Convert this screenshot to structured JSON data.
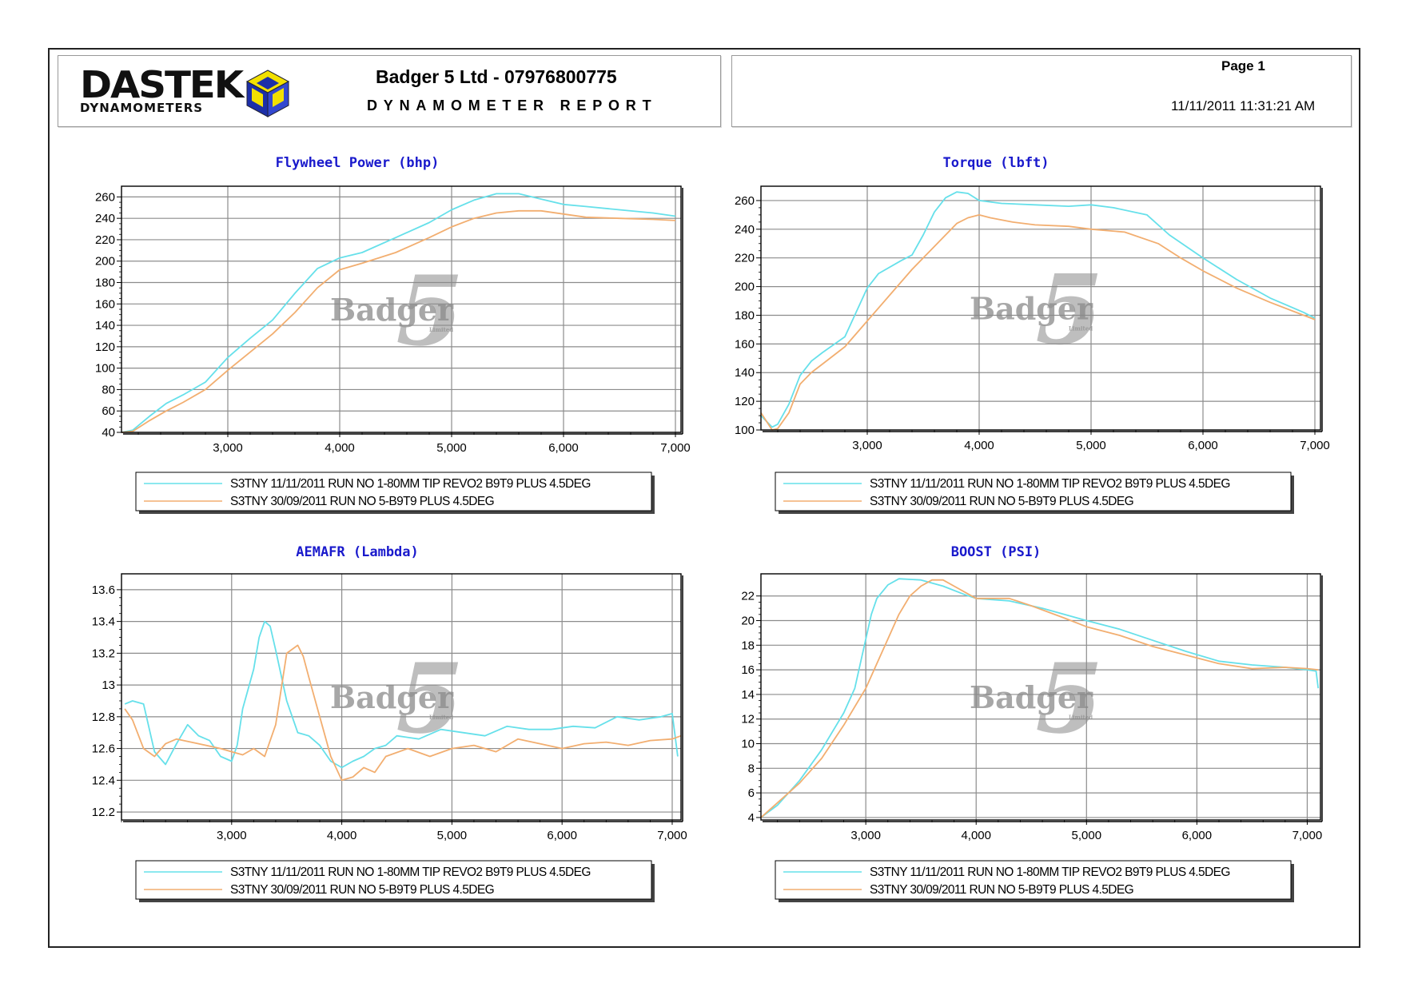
{
  "header": {
    "logo_main": "DASTEK",
    "logo_sub": "DYNAMOMETERS",
    "company": "Badger 5 Ltd - 07976800775",
    "report_title": "DYNAMOMETER REPORT",
    "page_label": "Page 1",
    "datetime": "11/11/2011 11:31:21 AM"
  },
  "colors": {
    "run1": "#66e0ea",
    "run2": "#f2ae70",
    "title": "#1a1acc"
  },
  "watermark": {
    "text": "Badger",
    "sub": "Limited",
    "numeral": "5"
  },
  "legend": [
    {
      "label": "S3TNY 11/11/2011 RUN NO 1-80MM TIP REVO2 B9T9 PLUS 4.5DEG"
    },
    {
      "label": "S3TNY 30/09/2011 RUN NO 5-B9T9 PLUS 4.5DEG"
    }
  ],
  "chart_data": [
    {
      "type": "line",
      "title": "Flywheel Power (bhp)",
      "xlim": [
        2050,
        7050
      ],
      "ylim": [
        40,
        270
      ],
      "xticks": [
        3000,
        4000,
        5000,
        6000,
        7000
      ],
      "xtick_labels": [
        "3,000",
        "4,000",
        "5,000",
        "6,000",
        "7,000"
      ],
      "yticks": [
        40,
        60,
        80,
        100,
        120,
        140,
        160,
        180,
        200,
        220,
        240,
        260
      ],
      "ytick_labels": [
        "40",
        "60",
        "80",
        "100",
        "120",
        "140",
        "160",
        "180",
        "200",
        "220",
        "240",
        "260"
      ],
      "series": [
        {
          "name": "S3TNY 11/11/2011 RUN NO 1-80MM TIP REVO2 B9T9 PLUS 4.5DEG",
          "x": [
            2050,
            2150,
            2300,
            2450,
            2600,
            2800,
            3000,
            3200,
            3400,
            3600,
            3800,
            4000,
            4200,
            4500,
            4800,
            5000,
            5200,
            5400,
            5600,
            5800,
            6000,
            6200,
            6500,
            6800,
            7000
          ],
          "y": [
            40,
            42,
            55,
            67,
            75,
            87,
            110,
            128,
            145,
            170,
            193,
            203,
            208,
            222,
            236,
            248,
            257,
            263,
            263,
            258,
            253,
            251,
            248,
            245,
            242
          ]
        },
        {
          "name": "S3TNY 30/09/2011 RUN NO 5-B9T9 PLUS 4.5DEG",
          "x": [
            2050,
            2150,
            2300,
            2450,
            2600,
            2800,
            3000,
            3200,
            3400,
            3600,
            3800,
            4000,
            4200,
            4500,
            4800,
            5000,
            5200,
            5400,
            5600,
            5800,
            6000,
            6200,
            6500,
            6800,
            7000
          ],
          "y": [
            40,
            41,
            51,
            60,
            68,
            80,
            98,
            115,
            132,
            152,
            175,
            192,
            198,
            208,
            222,
            232,
            240,
            245,
            247,
            247,
            244,
            241,
            240,
            239,
            238
          ]
        }
      ]
    },
    {
      "type": "line",
      "title": "Torque (lbft)",
      "xlim": [
        2050,
        7050
      ],
      "ylim": [
        100,
        270
      ],
      "xticks": [
        3000,
        4000,
        5000,
        6000,
        7000
      ],
      "xtick_labels": [
        "3,000",
        "4,000",
        "5,000",
        "6,000",
        "7,000"
      ],
      "yticks": [
        100,
        120,
        140,
        160,
        180,
        200,
        220,
        240,
        260
      ],
      "ytick_labels": [
        "100",
        "120",
        "140",
        "160",
        "180",
        "200",
        "220",
        "240",
        "260"
      ],
      "series": [
        {
          "name": "S3TNY 11/11/2011 RUN NO 1-80MM TIP REVO2 B9T9 PLUS 4.5DEG",
          "x": [
            2050,
            2150,
            2200,
            2300,
            2400,
            2500,
            2600,
            2800,
            3000,
            3100,
            3300,
            3400,
            3500,
            3600,
            3700,
            3800,
            3900,
            4000,
            4200,
            4500,
            4800,
            5000,
            5200,
            5500,
            5700,
            6000,
            6300,
            6600,
            6900,
            7000
          ],
          "y": [
            110,
            102,
            104,
            118,
            138,
            148,
            154,
            165,
            199,
            209,
            218,
            222,
            236,
            252,
            262,
            266,
            265,
            260,
            258,
            257,
            256,
            257,
            255,
            250,
            236,
            220,
            205,
            192,
            182,
            178
          ]
        },
        {
          "name": "S3TNY 30/09/2011 RUN NO 5-B9T9 PLUS 4.5DEG",
          "x": [
            2050,
            2150,
            2200,
            2300,
            2400,
            2500,
            2600,
            2800,
            3000,
            3200,
            3400,
            3600,
            3800,
            3900,
            4000,
            4100,
            4300,
            4500,
            4800,
            5000,
            5300,
            5600,
            5800,
            6000,
            6300,
            6600,
            6900,
            7000
          ],
          "y": [
            112,
            100,
            101,
            112,
            132,
            140,
            146,
            158,
            176,
            194,
            212,
            228,
            244,
            248,
            250,
            248,
            245,
            243,
            242,
            240,
            238,
            230,
            220,
            211,
            199,
            189,
            180,
            177
          ]
        }
      ]
    },
    {
      "type": "line",
      "title": "AEMAFR (Lambda)",
      "xlim": [
        2000,
        7080
      ],
      "ylim": [
        12.15,
        13.7
      ],
      "xticks": [
        3000,
        4000,
        5000,
        6000,
        7000
      ],
      "xtick_labels": [
        "3,000",
        "4,000",
        "5,000",
        "6,000",
        "7,000"
      ],
      "yticks": [
        12.2,
        12.4,
        12.6,
        12.8,
        13.0,
        13.2,
        13.4,
        13.6
      ],
      "ytick_labels": [
        "12.2",
        "12.4",
        "12.6",
        "12.8",
        "13",
        "13.2",
        "13.4",
        "13.6"
      ],
      "series": [
        {
          "name": "S3TNY 11/11/2011 RUN NO 1-80MM TIP REVO2 B9T9 PLUS 4.5DEG",
          "x": [
            2030,
            2100,
            2200,
            2300,
            2400,
            2500,
            2600,
            2700,
            2800,
            2900,
            3000,
            3050,
            3100,
            3200,
            3250,
            3300,
            3350,
            3400,
            3500,
            3600,
            3700,
            3800,
            3900,
            4000,
            4100,
            4200,
            4300,
            4400,
            4500,
            4700,
            4900,
            5100,
            5300,
            5500,
            5700,
            5900,
            6100,
            6300,
            6500,
            6700,
            6900,
            7000,
            7050
          ],
          "y": [
            12.88,
            12.9,
            12.88,
            12.58,
            12.5,
            12.63,
            12.75,
            12.68,
            12.65,
            12.55,
            12.52,
            12.62,
            12.85,
            13.1,
            13.3,
            13.4,
            13.37,
            13.22,
            12.9,
            12.7,
            12.68,
            12.62,
            12.52,
            12.48,
            12.52,
            12.55,
            12.6,
            12.62,
            12.68,
            12.66,
            12.72,
            12.7,
            12.68,
            12.74,
            12.72,
            12.72,
            12.74,
            12.73,
            12.8,
            12.78,
            12.8,
            12.82,
            12.55
          ]
        },
        {
          "name": "S3TNY 30/09/2011 RUN NO 5-B9T9 PLUS 4.5DEG",
          "x": [
            2030,
            2100,
            2200,
            2300,
            2400,
            2500,
            2700,
            2900,
            3000,
            3100,
            3200,
            3300,
            3400,
            3500,
            3600,
            3650,
            3700,
            3800,
            3900,
            4000,
            4100,
            4200,
            4300,
            4400,
            4600,
            4800,
            5000,
            5200,
            5400,
            5600,
            5800,
            6000,
            6200,
            6400,
            6600,
            6800,
            7000,
            7080
          ],
          "y": [
            12.85,
            12.78,
            12.6,
            12.55,
            12.63,
            12.66,
            12.63,
            12.6,
            12.58,
            12.56,
            12.6,
            12.55,
            12.75,
            13.2,
            13.25,
            13.18,
            13.05,
            12.8,
            12.55,
            12.4,
            12.42,
            12.48,
            12.45,
            12.55,
            12.6,
            12.55,
            12.6,
            12.62,
            12.58,
            12.66,
            12.63,
            12.6,
            12.63,
            12.64,
            12.62,
            12.65,
            12.66,
            12.68
          ]
        }
      ]
    },
    {
      "type": "line",
      "title": "BOOST (PSI)",
      "xlim": [
        2050,
        7120
      ],
      "ylim": [
        3.8,
        23.8
      ],
      "xticks": [
        3000,
        4000,
        5000,
        6000,
        7000
      ],
      "xtick_labels": [
        "3,000",
        "4,000",
        "5,000",
        "6,000",
        "7,000"
      ],
      "yticks": [
        4,
        6,
        8,
        10,
        12,
        14,
        16,
        18,
        20,
        22
      ],
      "ytick_labels": [
        "4",
        "6",
        "8",
        "10",
        "12",
        "14",
        "16",
        "18",
        "20",
        "22"
      ],
      "series": [
        {
          "name": "S3TNY 11/11/2011 RUN NO 1-80MM TIP REVO2 B9T9 PLUS 4.5DEG",
          "x": [
            2050,
            2200,
            2400,
            2600,
            2800,
            2900,
            3000,
            3050,
            3100,
            3200,
            3300,
            3500,
            3700,
            3900,
            4000,
            4300,
            4600,
            5000,
            5300,
            5600,
            5900,
            6200,
            6500,
            6800,
            7000,
            7080,
            7100
          ],
          "y": [
            4,
            5,
            7,
            9.5,
            12.5,
            14.5,
            18.5,
            20.5,
            21.8,
            22.9,
            23.4,
            23.3,
            22.8,
            22.1,
            21.8,
            21.6,
            21,
            20,
            19.3,
            18.4,
            17.5,
            16.7,
            16.4,
            16.2,
            16,
            15.9,
            14.5
          ]
        },
        {
          "name": "S3TNY 30/09/2011 RUN NO 5-B9T9 PLUS 4.5DEG",
          "x": [
            2050,
            2200,
            2400,
            2600,
            2800,
            3000,
            3100,
            3200,
            3300,
            3400,
            3500,
            3600,
            3700,
            3800,
            4000,
            4300,
            4500,
            4800,
            5000,
            5300,
            5600,
            5900,
            6200,
            6500,
            6800,
            7000,
            7100
          ],
          "y": [
            4,
            5.2,
            6.8,
            8.8,
            11.5,
            14.5,
            16.5,
            18.5,
            20.5,
            22,
            22.8,
            23.3,
            23.3,
            22.8,
            21.8,
            21.8,
            21.2,
            20.2,
            19.5,
            18.8,
            17.9,
            17.2,
            16.5,
            16.1,
            16.2,
            16.1,
            16
          ]
        }
      ]
    }
  ]
}
